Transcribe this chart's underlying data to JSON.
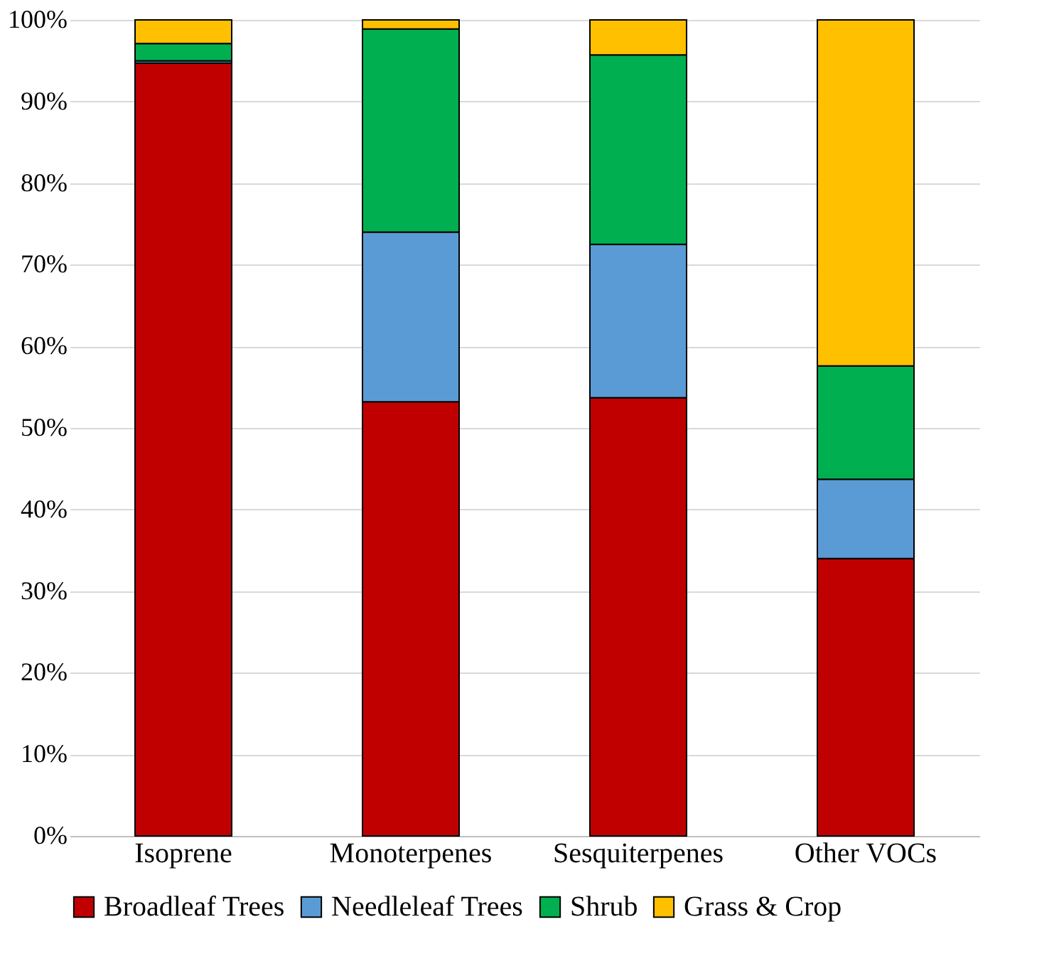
{
  "chart_data": {
    "type": "bar",
    "stacked": true,
    "categories": [
      "Isoprene",
      "Monoterpenes",
      "Sesquiterpenes",
      "Other VOCs"
    ],
    "series": [
      {
        "name": "Broadleaf Trees",
        "color": "#c00000",
        "values": [
          94.7,
          53.2,
          53.7,
          34.0
        ]
      },
      {
        "name": "Needleleaf Trees",
        "color": "#5b9bd5",
        "values": [
          0.3,
          20.8,
          18.8,
          9.7
        ]
      },
      {
        "name": "Shrub",
        "color": "#00b050",
        "values": [
          2.1,
          24.9,
          23.2,
          13.9
        ]
      },
      {
        "name": "Grass & Crop",
        "color": "#ffc000",
        "values": [
          2.9,
          1.1,
          4.3,
          42.4
        ]
      }
    ],
    "ylim": [
      0,
      100
    ],
    "yticks": [
      {
        "value": 0,
        "label": "0%"
      },
      {
        "value": 10,
        "label": "10%"
      },
      {
        "value": 20,
        "label": "20%"
      },
      {
        "value": 30,
        "label": "30%"
      },
      {
        "value": 40,
        "label": "40%"
      },
      {
        "value": 50,
        "label": "50%"
      },
      {
        "value": 60,
        "label": "60%"
      },
      {
        "value": 70,
        "label": "70%"
      },
      {
        "value": 80,
        "label": "80%"
      },
      {
        "value": 90,
        "label": "90%"
      },
      {
        "value": 100,
        "label": "100%"
      }
    ],
    "grid": "y",
    "legend": "bottom"
  }
}
